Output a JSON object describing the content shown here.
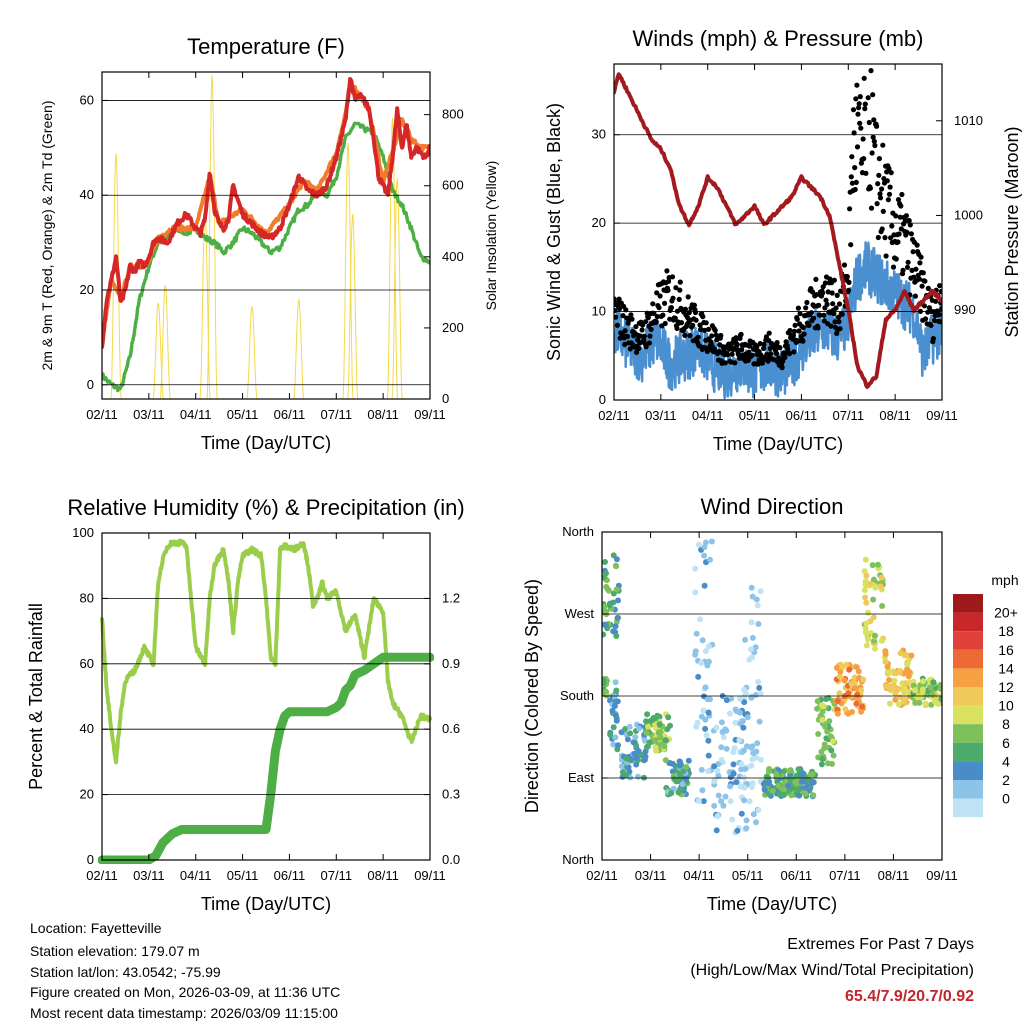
{
  "charts": {
    "temperature": {
      "title": "Temperature (F)",
      "ylabel_left": "2m & 9m T (Red, Orange) & 2m Td (Green)",
      "ylabel_right": "Solar Insolation (Yellow)",
      "xlabel": "Time (Day/UTC)"
    },
    "winds": {
      "title": "Winds (mph) & Pressure (mb)",
      "ylabel_left": "Sonic Wind & Gust (Blue, Black)",
      "ylabel_right": "Station Pressure (Maroon)",
      "xlabel": "Time (Day/UTC)"
    },
    "humidity": {
      "title": "Relative Humidity (%) & Precipitation (in)",
      "ylabel_left": "Percent & Total Rainfall",
      "xlabel": "Time (Day/UTC)"
    },
    "direction": {
      "title": "Wind Direction",
      "ylabel_left": "Direction (Colored By Speed)",
      "xlabel": "Time (Day/UTC)",
      "legend_title": "mph"
    }
  },
  "info": {
    "location": "Location: Fayetteville",
    "elevation": "Station elevation: 179.07 m",
    "latlon": "Station lat/lon: 43.0542; -75.99",
    "created": "Figure created on Mon, 2026-03-09, at 11:36 UTC",
    "recent": "Most recent data timestamp: 2026/03/09 11:15:00"
  },
  "extremes": {
    "title": "Extremes For Past 7 Days",
    "subtitle": "(High/Low/Max Wind/Total Precipitation)",
    "values": "65.4/7.9/20.7/0.92"
  },
  "colors": {
    "temp2m": "#d62728",
    "temp9m": "#f07c2c",
    "dewpoint": "#4cae44",
    "solar": "#f5d94a",
    "wind": "#4a8fcf",
    "gust": "#000000",
    "pressure": "#a31a1e",
    "rh": "#9acd4a",
    "precip": "#4cae44"
  },
  "chart_data": [
    {
      "type": "line",
      "id": "temperature",
      "title": "Temperature (F)",
      "xlabel": "Time (Day/UTC)",
      "ylabel": "2m & 9m T (Red, Orange) & 2m Td (Green)",
      "ylabel2": "Solar Insolation (Yellow)",
      "x_ticks": [
        "02/11",
        "03/11",
        "04/11",
        "05/11",
        "06/11",
        "07/11",
        "08/11",
        "09/11"
      ],
      "xlim": [
        0,
        7
      ],
      "ylim": [
        -3,
        66
      ],
      "y_ticks": [
        0,
        20,
        40,
        60
      ],
      "y2lim": [
        0,
        920
      ],
      "y2_ticks": [
        0,
        200,
        400,
        600,
        800
      ],
      "series": [
        {
          "name": "2m T",
          "axis": "left",
          "x": [
            0,
            0.1,
            0.2,
            0.3,
            0.4,
            0.5,
            0.6,
            0.7,
            0.8,
            0.9,
            1.0,
            1.1,
            1.2,
            1.4,
            1.6,
            1.8,
            2.0,
            2.1,
            2.2,
            2.3,
            2.4,
            2.5,
            2.6,
            2.7,
            2.8,
            3.0,
            3.2,
            3.4,
            3.6,
            3.8,
            4.0,
            4.2,
            4.4,
            4.6,
            4.8,
            5.0,
            5.1,
            5.2,
            5.3,
            5.4,
            5.5,
            5.6,
            5.7,
            5.8,
            5.9,
            6.0,
            6.1,
            6.2,
            6.3,
            6.4,
            6.5,
            6.6,
            6.7,
            6.8,
            6.9,
            7.0
          ],
          "values": [
            8,
            18,
            22,
            27,
            17,
            20,
            25,
            24,
            26,
            25,
            27,
            30,
            31,
            30,
            34,
            36,
            33,
            32,
            35,
            45,
            37,
            34,
            33,
            35,
            42,
            36,
            34,
            32,
            31,
            33,
            38,
            44,
            41,
            40,
            42,
            48,
            52,
            56,
            65,
            60,
            61,
            60,
            58,
            52,
            44,
            42,
            40,
            48,
            58,
            50,
            55,
            48,
            50,
            49,
            48,
            50
          ]
        },
        {
          "name": "9m T",
          "axis": "left",
          "x": [
            0,
            0.2,
            0.4,
            0.6,
            0.8,
            1.0,
            1.2,
            1.5,
            2.0,
            2.3,
            2.5,
            3.0,
            3.5,
            4.0,
            4.3,
            4.6,
            5.0,
            5.2,
            5.3,
            5.5,
            5.7,
            6.0,
            6.2,
            6.4,
            6.6,
            6.8,
            7.0
          ],
          "values": [
            9,
            22,
            18,
            25,
            25,
            26,
            31,
            33,
            33,
            44,
            34,
            37,
            32,
            38,
            43,
            41,
            49,
            57,
            64,
            61,
            58,
            43,
            49,
            56,
            52,
            50,
            50
          ]
        },
        {
          "name": "2m Td",
          "axis": "left",
          "x": [
            0,
            0.2,
            0.4,
            0.6,
            0.8,
            1.0,
            1.2,
            1.4,
            1.6,
            1.8,
            2.0,
            2.2,
            2.4,
            2.6,
            2.8,
            3.0,
            3.2,
            3.4,
            3.6,
            3.8,
            4.0,
            4.2,
            4.4,
            4.6,
            4.8,
            5.0,
            5.2,
            5.4,
            5.6,
            5.8,
            6.0,
            6.2,
            6.4,
            6.6,
            6.8,
            7.0
          ],
          "values": [
            2,
            0,
            -1,
            6,
            18,
            25,
            30,
            31,
            33,
            32,
            33,
            31,
            30,
            28,
            30,
            33,
            32,
            30,
            28,
            29,
            33,
            37,
            38,
            41,
            40,
            44,
            52,
            55,
            54,
            53,
            48,
            41,
            38,
            33,
            27,
            26
          ]
        },
        {
          "name": "Solar Insolation",
          "axis": "right",
          "peaks": [
            {
              "x": 0.3,
              "value": 690
            },
            {
              "x": 1.2,
              "value": 270
            },
            {
              "x": 1.35,
              "value": 320
            },
            {
              "x": 2.2,
              "value": 530
            },
            {
              "x": 2.35,
              "value": 910
            },
            {
              "x": 3.2,
              "value": 260
            },
            {
              "x": 4.2,
              "value": 280
            },
            {
              "x": 5.25,
              "value": 720
            },
            {
              "x": 5.35,
              "value": 520
            },
            {
              "x": 6.2,
              "value": 790
            },
            {
              "x": 6.3,
              "value": 620
            }
          ]
        }
      ]
    },
    {
      "type": "line",
      "id": "winds",
      "title": "Winds (mph) & Pressure (mb)",
      "xlabel": "Time (Day/UTC)",
      "ylabel": "Sonic Wind & Gust (Blue, Black)",
      "ylabel2": "Station Pressure (Maroon)",
      "x_ticks": [
        "02/11",
        "03/11",
        "04/11",
        "05/11",
        "06/11",
        "07/11",
        "08/11",
        "09/11"
      ],
      "xlim": [
        0,
        7
      ],
      "ylim": [
        0,
        38
      ],
      "y_ticks": [
        0,
        10,
        20,
        30
      ],
      "y2lim": [
        980.5,
        1016
      ],
      "y2_ticks": [
        990,
        1000,
        1010
      ],
      "series": [
        {
          "name": "Sonic Wind",
          "axis": "left",
          "x": [
            0,
            0.3,
            0.6,
            0.9,
            1.2,
            1.5,
            1.8,
            2.1,
            2.4,
            2.7,
            3.0,
            3.3,
            3.6,
            3.9,
            4.2,
            4.5,
            4.8,
            5.0,
            5.2,
            5.4,
            5.6,
            5.8,
            6.0,
            6.2,
            6.4,
            6.6,
            6.8,
            7.0
          ],
          "values": [
            8,
            6,
            5,
            7,
            4,
            5,
            6,
            4,
            3,
            4,
            3,
            4,
            3,
            5,
            7,
            8,
            7,
            9,
            14,
            15,
            14,
            13,
            12,
            11,
            10,
            5,
            7,
            8
          ]
        },
        {
          "name": "Gust",
          "axis": "left",
          "x": [
            0,
            0.3,
            0.6,
            0.9,
            1.2,
            1.5,
            1.8,
            2.1,
            2.4,
            2.7,
            3.0,
            3.3,
            3.6,
            3.9,
            4.2,
            4.5,
            4.8,
            5.0,
            5.1,
            5.2,
            5.3,
            5.4,
            5.5,
            5.6,
            5.8,
            6.0,
            6.2,
            6.4,
            6.6,
            6.8,
            7.0
          ],
          "values": [
            10,
            8,
            7,
            10,
            12,
            10,
            8,
            7,
            5,
            6,
            5,
            6,
            5,
            8,
            10,
            12,
            10,
            14,
            28,
            30,
            26,
            33,
            29,
            25,
            22,
            19,
            18,
            15,
            12,
            9,
            13
          ]
        },
        {
          "name": "Station Pressure",
          "axis": "right",
          "x": [
            0,
            0.1,
            0.2,
            0.4,
            0.6,
            0.8,
            1.0,
            1.2,
            1.4,
            1.6,
            1.8,
            2.0,
            2.2,
            2.4,
            2.6,
            2.8,
            3.0,
            3.2,
            3.4,
            3.6,
            3.8,
            4.0,
            4.2,
            4.4,
            4.6,
            4.8,
            5.0,
            5.2,
            5.4,
            5.6,
            5.8,
            6.0,
            6.2,
            6.4,
            6.6,
            6.8,
            7.0
          ],
          "values": [
            1013,
            1015,
            1014,
            1012,
            1010,
            1008,
            1007,
            1005,
            1001,
            999,
            1001,
            1004,
            1003,
            1001,
            999,
            1000,
            1001,
            999,
            1000,
            1001,
            1002,
            1004,
            1003,
            1002,
            1000,
            995,
            990,
            984,
            982,
            983,
            989,
            990,
            992,
            990,
            991,
            992,
            991
          ]
        }
      ]
    },
    {
      "type": "line",
      "id": "humidity",
      "title": "Relative Humidity (%) & Precipitation (in)",
      "xlabel": "Time (Day/UTC)",
      "ylabel": "Percent & Total Rainfall",
      "x_ticks": [
        "02/11",
        "03/11",
        "04/11",
        "05/11",
        "06/11",
        "07/11",
        "08/11",
        "09/11"
      ],
      "xlim": [
        0,
        7
      ],
      "ylim": [
        0,
        100
      ],
      "y_ticks": [
        0,
        20,
        40,
        60,
        80,
        100
      ],
      "y2lim": [
        0,
        1.5
      ],
      "y2_ticks": [
        0.0,
        0.3,
        0.6,
        0.9,
        1.2
      ],
      "series": [
        {
          "name": "Relative Humidity",
          "axis": "left",
          "x": [
            0,
            0.1,
            0.2,
            0.3,
            0.4,
            0.5,
            0.7,
            0.9,
            1.1,
            1.2,
            1.3,
            1.4,
            1.5,
            1.6,
            1.7,
            1.8,
            2.0,
            2.2,
            2.3,
            2.4,
            2.5,
            2.6,
            2.7,
            2.8,
            2.9,
            3.0,
            3.2,
            3.4,
            3.5,
            3.6,
            3.7,
            3.8,
            3.9,
            4.1,
            4.3,
            4.4,
            4.5,
            4.6,
            4.7,
            4.8,
            5.0,
            5.2,
            5.4,
            5.6,
            5.8,
            6.0,
            6.1,
            6.2,
            6.4,
            6.6,
            6.8,
            7.0
          ],
          "values": [
            74,
            52,
            40,
            30,
            45,
            55,
            58,
            65,
            60,
            85,
            92,
            96,
            97,
            97,
            97,
            96,
            65,
            60,
            80,
            90,
            93,
            95,
            85,
            70,
            85,
            93,
            95,
            93,
            80,
            62,
            60,
            95,
            96,
            95,
            97,
            90,
            78,
            80,
            85,
            80,
            82,
            70,
            75,
            62,
            80,
            76,
            55,
            48,
            44,
            36,
            44,
            43
          ]
        },
        {
          "name": "Total Precipitation",
          "axis": "right",
          "x": [
            0,
            1.0,
            1.15,
            1.3,
            1.5,
            1.7,
            2.0,
            2.5,
            3.0,
            3.5,
            3.6,
            3.7,
            3.8,
            3.9,
            4.0,
            4.4,
            4.8,
            5.0,
            5.1,
            5.2,
            5.3,
            5.4,
            5.6,
            5.8,
            6.0,
            6.5,
            7.0
          ],
          "values": [
            0.0,
            0.0,
            0.02,
            0.08,
            0.12,
            0.14,
            0.14,
            0.14,
            0.14,
            0.14,
            0.3,
            0.5,
            0.6,
            0.66,
            0.68,
            0.68,
            0.68,
            0.7,
            0.72,
            0.78,
            0.8,
            0.85,
            0.87,
            0.9,
            0.93,
            0.93,
            0.93
          ]
        }
      ]
    },
    {
      "type": "scatter",
      "id": "direction",
      "title": "Wind Direction",
      "xlabel": "Time (Day/UTC)",
      "ylabel": "Direction (Colored By Speed)",
      "x_ticks": [
        "02/11",
        "03/11",
        "04/11",
        "05/11",
        "06/11",
        "07/11",
        "08/11",
        "09/11"
      ],
      "xlim": [
        0,
        7
      ],
      "ylim": [
        0,
        360
      ],
      "y_tick_values": [
        0,
        90,
        180,
        270,
        360
      ],
      "y_tick_labels": [
        "North",
        "East",
        "South",
        "West",
        "North"
      ],
      "legend": {
        "title": "mph",
        "labels": [
          "20+",
          "18",
          "16",
          "14",
          "12",
          "10",
          "8",
          "6",
          "4",
          "2",
          "0"
        ],
        "colors": [
          "#9e1a1a",
          "#c8272c",
          "#e0403a",
          "#ee6a35",
          "#f5a043",
          "#f0c95a",
          "#d9e25f",
          "#7ec05a",
          "#4caa6a",
          "#4a8cc8",
          "#8dc3e8",
          "#bfe3f5"
        ]
      },
      "groups": [
        {
          "x0": 0.0,
          "x1": 0.35,
          "dir_min": 240,
          "dir_max": 340,
          "speed": 6
        },
        {
          "x0": 0.0,
          "x1": 0.1,
          "dir_min": 180,
          "dir_max": 200,
          "speed": 8
        },
        {
          "x0": 0.15,
          "x1": 0.35,
          "dir_min": 120,
          "dir_max": 200,
          "speed": 4
        },
        {
          "x0": 0.4,
          "x1": 0.9,
          "dir_min": 90,
          "dir_max": 150,
          "speed": 4
        },
        {
          "x0": 0.9,
          "x1": 1.4,
          "dir_min": 120,
          "dir_max": 160,
          "speed": 8
        },
        {
          "x0": 1.3,
          "x1": 1.8,
          "dir_min": 70,
          "dir_max": 110,
          "speed": 5
        },
        {
          "x0": 1.9,
          "x1": 2.3,
          "dir_min": 50,
          "dir_max": 350,
          "speed": 2
        },
        {
          "x0": 2.3,
          "x1": 3.0,
          "dir_min": 30,
          "dir_max": 180,
          "speed": 2
        },
        {
          "x0": 2.9,
          "x1": 3.3,
          "dir_min": 40,
          "dir_max": 300,
          "speed": 1
        },
        {
          "x0": 3.3,
          "x1": 4.4,
          "dir_min": 70,
          "dir_max": 100,
          "speed": 6
        },
        {
          "x0": 4.4,
          "x1": 4.8,
          "dir_min": 100,
          "dir_max": 180,
          "speed": 7
        },
        {
          "x0": 4.8,
          "x1": 5.4,
          "dir_min": 160,
          "dir_max": 215,
          "speed": 14
        },
        {
          "x0": 5.4,
          "x1": 5.8,
          "dir_min": 230,
          "dir_max": 330,
          "speed": 10
        },
        {
          "x0": 5.8,
          "x1": 6.4,
          "dir_min": 170,
          "dir_max": 230,
          "speed": 12
        },
        {
          "x0": 6.4,
          "x1": 7.0,
          "dir_min": 170,
          "dir_max": 200,
          "speed": 9
        }
      ]
    }
  ]
}
